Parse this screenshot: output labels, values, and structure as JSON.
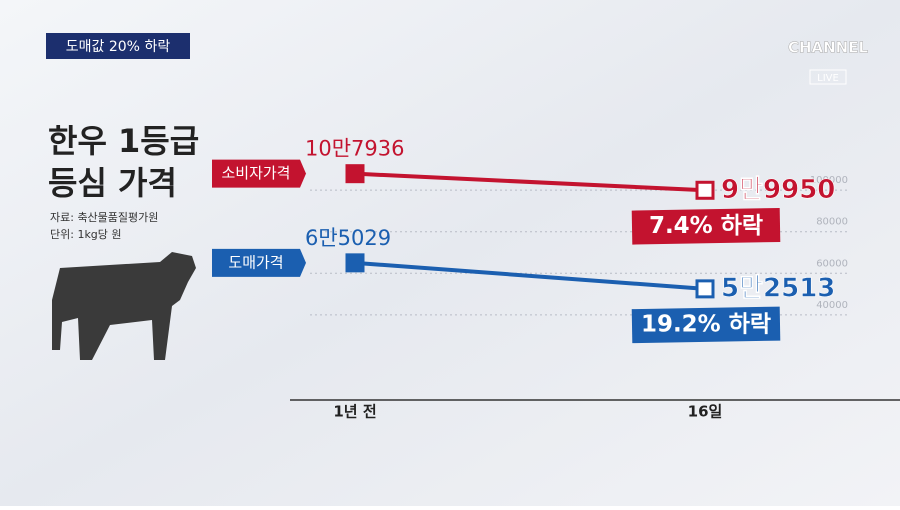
{
  "chart_data": {
    "type": "line",
    "banner": "도매값 20% 하락",
    "title_lines": [
      "한우 1등급",
      "등심 가격"
    ],
    "source": "자료: 축산물품질평가원",
    "unit": "단위: 1kg당 원",
    "logo": [
      "CHANNEL",
      "LIVE"
    ],
    "categories": [
      "1년 전",
      "16일"
    ],
    "series": [
      {
        "name": "소비자가격",
        "color": "#c3132f",
        "values": [
          107936,
          99950
        ],
        "value_labels": [
          "10만7936",
          "9만9950"
        ]
      },
      {
        "name": "도매가격",
        "color": "#1b5fb0",
        "values": [
          65029,
          52513
        ],
        "value_labels": [
          "6만5029",
          "5만2513"
        ]
      }
    ],
    "annotations": [
      "7.4% 하락",
      "19.2% 하락"
    ],
    "ylim": [
      0,
      115000
    ],
    "yticks": [
      40000,
      60000,
      80000,
      100000
    ],
    "grid": true
  }
}
